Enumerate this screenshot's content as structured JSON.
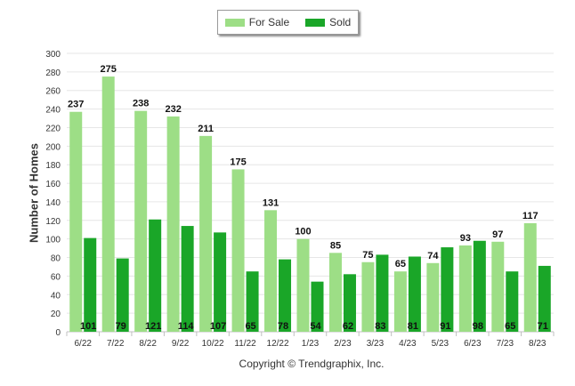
{
  "chart_data": {
    "type": "bar",
    "ylabel": "Number of Homes",
    "ylim": [
      0,
      300
    ],
    "yticks": [
      0,
      20,
      40,
      60,
      80,
      100,
      120,
      140,
      160,
      180,
      200,
      220,
      240,
      260,
      280,
      300
    ],
    "grid": true,
    "legend_position": "top-center",
    "categories": [
      "6/22",
      "7/22",
      "8/22",
      "9/22",
      "10/22",
      "11/22",
      "12/22",
      "1/23",
      "2/23",
      "3/23",
      "4/23",
      "5/23",
      "6/23",
      "7/23",
      "8/23"
    ],
    "series": [
      {
        "name": "For Sale",
        "color": "#9dde86",
        "values": [
          237,
          275,
          238,
          232,
          211,
          175,
          131,
          100,
          85,
          75,
          65,
          74,
          93,
          97,
          117
        ]
      },
      {
        "name": "Sold",
        "color": "#1aa628",
        "values": [
          101,
          79,
          121,
          114,
          107,
          65,
          78,
          54,
          62,
          83,
          81,
          91,
          98,
          65,
          71
        ]
      }
    ]
  },
  "footer": {
    "copyright": "Copyright © Trendgraphix, Inc."
  }
}
